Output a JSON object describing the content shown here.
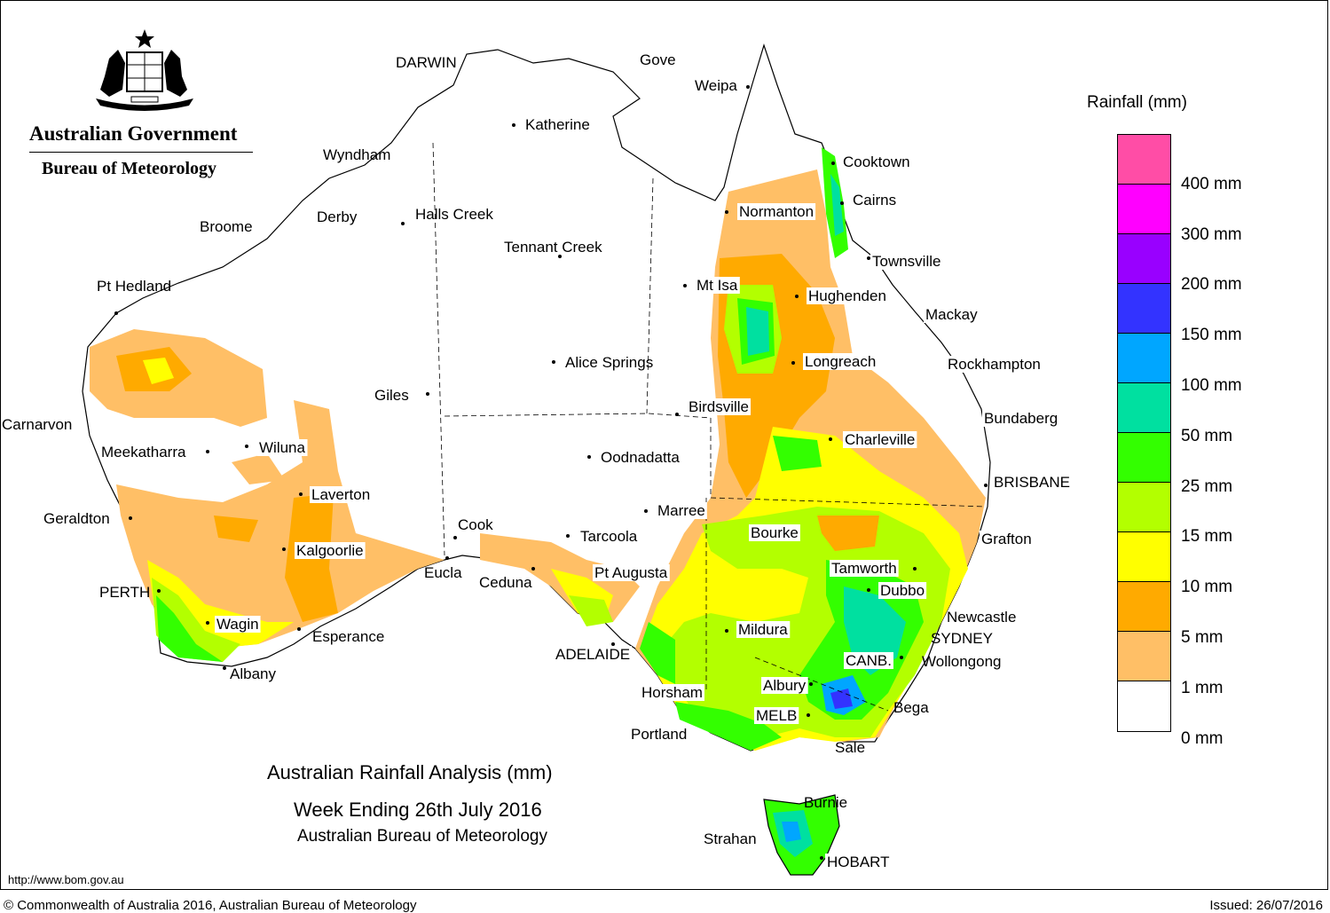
{
  "header": {
    "agency": "Australian Government",
    "bureau": "Bureau of Meteorology"
  },
  "title": {
    "line1": "Australian Rainfall Analysis (mm)",
    "line2": "Week Ending 26th July 2016",
    "line3": "Australian Bureau of Meteorology"
  },
  "legend": {
    "title": "Rainfall (mm)",
    "bands": [
      {
        "label": "",
        "color": "#ff4da6"
      },
      {
        "label": "400 mm",
        "color": "#ff00ff"
      },
      {
        "label": "300 mm",
        "color": "#9900ff"
      },
      {
        "label": "200 mm",
        "color": "#3333ff"
      },
      {
        "label": "150 mm",
        "color": "#00a6ff"
      },
      {
        "label": "100 mm",
        "color": "#00e0a0"
      },
      {
        "label": "50 mm",
        "color": "#33ff00"
      },
      {
        "label": "25 mm",
        "color": "#b3ff00"
      },
      {
        "label": "15 mm",
        "color": "#ffff00"
      },
      {
        "label": "10 mm",
        "color": "#ffaa00"
      },
      {
        "label": "5 mm",
        "color": "#ffbf66"
      },
      {
        "label": "1 mm",
        "color": "#ffffff"
      }
    ],
    "bottom_label": "0 mm"
  },
  "places": [
    {
      "name": "DARWIN",
      "boxed": false
    },
    {
      "name": "Gove",
      "boxed": false
    },
    {
      "name": "Weipa",
      "boxed": false
    },
    {
      "name": "Katherine",
      "boxed": false
    },
    {
      "name": "Wyndham",
      "boxed": false
    },
    {
      "name": "Cooktown",
      "boxed": true
    },
    {
      "name": "Cairns",
      "boxed": true
    },
    {
      "name": "Normanton",
      "boxed": true
    },
    {
      "name": "Derby",
      "boxed": false
    },
    {
      "name": "Halls Creek",
      "boxed": false
    },
    {
      "name": "Broome",
      "boxed": false
    },
    {
      "name": "Tennant Creek",
      "boxed": false
    },
    {
      "name": "Townsville",
      "boxed": true
    },
    {
      "name": "Pt Hedland",
      "boxed": false
    },
    {
      "name": "Mt Isa",
      "boxed": true
    },
    {
      "name": "Hughenden",
      "boxed": true
    },
    {
      "name": "Mackay",
      "boxed": true
    },
    {
      "name": "Alice Springs",
      "boxed": false
    },
    {
      "name": "Longreach",
      "boxed": true
    },
    {
      "name": "Rockhampton",
      "boxed": true
    },
    {
      "name": "Giles",
      "boxed": false
    },
    {
      "name": "Birdsville",
      "boxed": true
    },
    {
      "name": "Bundaberg",
      "boxed": true
    },
    {
      "name": "Carnarvon",
      "boxed": false
    },
    {
      "name": "Charleville",
      "boxed": true
    },
    {
      "name": "Meekatharra",
      "boxed": false
    },
    {
      "name": "Wiluna",
      "boxed": true
    },
    {
      "name": "Oodnadatta",
      "boxed": false
    },
    {
      "name": "BRISBANE",
      "boxed": false
    },
    {
      "name": "Laverton",
      "boxed": true
    },
    {
      "name": "Geraldton",
      "boxed": false
    },
    {
      "name": "Marree",
      "boxed": true
    },
    {
      "name": "Cook",
      "boxed": true
    },
    {
      "name": "Tarcoola",
      "boxed": true
    },
    {
      "name": "Bourke",
      "boxed": true
    },
    {
      "name": "Grafton",
      "boxed": true
    },
    {
      "name": "Kalgoorlie",
      "boxed": true
    },
    {
      "name": "Tamworth",
      "boxed": true
    },
    {
      "name": "Eucla",
      "boxed": false
    },
    {
      "name": "Pt Augusta",
      "boxed": true
    },
    {
      "name": "Ceduna",
      "boxed": false
    },
    {
      "name": "Dubbo",
      "boxed": true
    },
    {
      "name": "PERTH",
      "boxed": false
    },
    {
      "name": "Newcastle",
      "boxed": false
    },
    {
      "name": "Wagin",
      "boxed": true
    },
    {
      "name": "Mildura",
      "boxed": true
    },
    {
      "name": "Esperance",
      "boxed": false
    },
    {
      "name": "SYDNEY",
      "boxed": false
    },
    {
      "name": "ADELAIDE",
      "boxed": true
    },
    {
      "name": "CANB.",
      "boxed": true
    },
    {
      "name": "Wollongong",
      "boxed": false
    },
    {
      "name": "Albany",
      "boxed": false
    },
    {
      "name": "Albury",
      "boxed": true
    },
    {
      "name": "Horsham",
      "boxed": true
    },
    {
      "name": "Bega",
      "boxed": false
    },
    {
      "name": "MELB",
      "boxed": true
    },
    {
      "name": "Portland",
      "boxed": false
    },
    {
      "name": "Sale",
      "boxed": false
    },
    {
      "name": "Burnie",
      "boxed": false
    },
    {
      "name": "Strahan",
      "boxed": false
    },
    {
      "name": "HOBART",
      "boxed": true
    }
  ],
  "footer": {
    "url": "http://www.bom.gov.au",
    "copyright": "© Commonwealth of Australia 2016, Australian Bureau of Meteorology",
    "issued": "Issued: 26/07/2016"
  }
}
